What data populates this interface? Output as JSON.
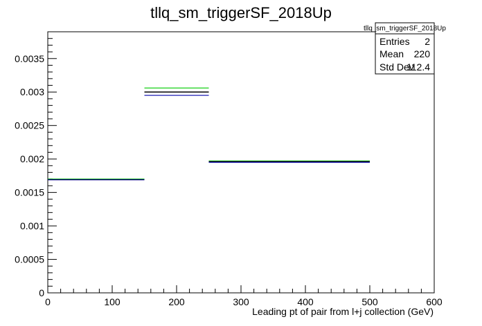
{
  "chart_data": {
    "type": "histogram",
    "title": "tllq_sm_triggerSF_2018Up",
    "xlabel": "Leading pt of pair from l+j collection (GeV)",
    "ylabel": "",
    "xlim": [
      0,
      600
    ],
    "ylim": [
      0,
      0.0039
    ],
    "x_ticks": [
      0,
      100,
      200,
      300,
      400,
      500,
      600
    ],
    "x_tick_labels": [
      "0",
      "100",
      "200",
      "300",
      "400",
      "500",
      "600"
    ],
    "y_ticks": [
      0,
      0.0005,
      0.001,
      0.0015,
      0.002,
      0.0025,
      0.003,
      0.0035
    ],
    "y_tick_labels": [
      "0",
      "0.0005",
      "0.001",
      "0.0015",
      "0.002",
      "0.0025",
      "0.003",
      "0.0035"
    ],
    "bins": [
      {
        "x_low": 0,
        "x_high": 150
      },
      {
        "x_low": 150,
        "x_high": 250
      },
      {
        "x_low": 250,
        "x_high": 500
      }
    ],
    "series": [
      {
        "color": "#00cc00",
        "values": [
          0.0017,
          0.00306,
          0.00197
        ]
      },
      {
        "color": "#000000",
        "values": [
          0.00169,
          0.003,
          0.00196
        ]
      },
      {
        "color": "#0000aa",
        "values": [
          0.00169,
          0.00295,
          0.00195
        ]
      }
    ],
    "stats_box": {
      "title": "tllq_sm_triggerSF_2018Up",
      "rows": [
        {
          "label": "Entries",
          "value": "2"
        },
        {
          "label": "Mean",
          "value": "220"
        },
        {
          "label": "Std Dev",
          "value": "112.4"
        }
      ]
    },
    "grid": false,
    "legend": "none"
  }
}
